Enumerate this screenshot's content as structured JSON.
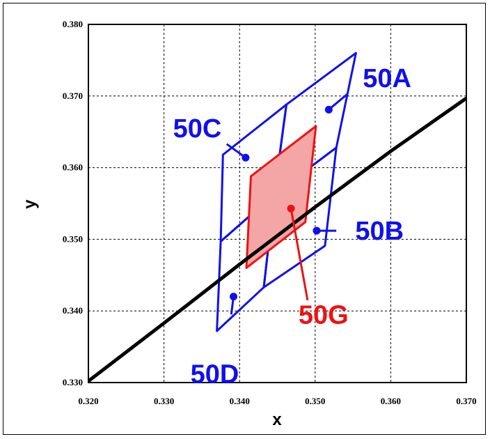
{
  "chart_data": {
    "type": "line",
    "xlabel": "x",
    "ylabel": "y",
    "xlim": [
      0.32,
      0.37
    ],
    "ylim": [
      0.33,
      0.38
    ],
    "x_ticks": [
      "0.320",
      "0.330",
      "0.340",
      "0.350",
      "0.360",
      "0.370"
    ],
    "y_ticks": [
      "0.330",
      "0.340",
      "0.350",
      "0.360",
      "0.370",
      "0.380"
    ],
    "grid": true,
    "curve": {
      "color": "#000000",
      "points": [
        [
          0.32,
          0.3302
        ],
        [
          0.33,
          0.3383
        ],
        [
          0.34,
          0.3465
        ],
        [
          0.35,
          0.3545
        ],
        [
          0.36,
          0.3623
        ],
        [
          0.37,
          0.3697
        ]
      ]
    },
    "regions": [
      {
        "label": "50A",
        "color": "#1010ee",
        "polygon": [
          [
            0.3462,
            0.3688
          ],
          [
            0.3554,
            0.376
          ],
          [
            0.3528,
            0.3628
          ],
          [
            0.3446,
            0.3563
          ]
        ]
      },
      {
        "label": "50B",
        "color": "#1010ee",
        "polygon": [
          [
            0.3446,
            0.3563
          ],
          [
            0.3528,
            0.3628
          ],
          [
            0.3513,
            0.3491
          ],
          [
            0.3432,
            0.3433
          ]
        ]
      },
      {
        "label": "50C",
        "color": "#1010ee",
        "polygon": [
          [
            0.3378,
            0.3618
          ],
          [
            0.3462,
            0.3688
          ],
          [
            0.3446,
            0.3563
          ],
          [
            0.3375,
            0.3497
          ]
        ]
      },
      {
        "label": "50D",
        "color": "#1010ee",
        "polygon": [
          [
            0.3375,
            0.3497
          ],
          [
            0.3446,
            0.3563
          ],
          [
            0.3432,
            0.3433
          ],
          [
            0.337,
            0.3372
          ]
        ]
      },
      {
        "label": "50G",
        "color": "#ee1111",
        "fill": "#f4a6a6",
        "polygon": [
          [
            0.3415,
            0.3588
          ],
          [
            0.3501,
            0.3658
          ],
          [
            0.3487,
            0.3524
          ],
          [
            0.3409,
            0.346
          ]
        ]
      }
    ],
    "callouts": [
      {
        "text": "50A",
        "color": "#1010ee",
        "point": [
          0.3518,
          0.3681
        ],
        "elbow": [
          0.3543,
          0.3703
        ],
        "label_at": [
          0.3563,
          0.3725
        ]
      },
      {
        "text": "50B",
        "color": "#1010ee",
        "point": [
          0.3502,
          0.3512
        ],
        "elbow": [
          0.3528,
          0.3512
        ],
        "label_at": [
          0.3553,
          0.3512
        ]
      },
      {
        "text": "50C",
        "color": "#1010ee",
        "point": [
          0.3408,
          0.3614
        ],
        "elbow": [
          0.3383,
          0.3633
        ],
        "label_at": [
          0.3312,
          0.3655
        ]
      },
      {
        "text": "50D",
        "color": "#1010ee",
        "point": [
          0.3392,
          0.342
        ],
        "elbow": [
          0.3389,
          0.3395
        ],
        "label_at": [
          0.3335,
          0.3312
        ]
      },
      {
        "text": "50G",
        "color": "#ee1111",
        "point": [
          0.3468,
          0.3543
        ],
        "elbow": [
          0.349,
          0.3415
        ],
        "label_at": [
          0.3478,
          0.3395
        ]
      }
    ]
  }
}
